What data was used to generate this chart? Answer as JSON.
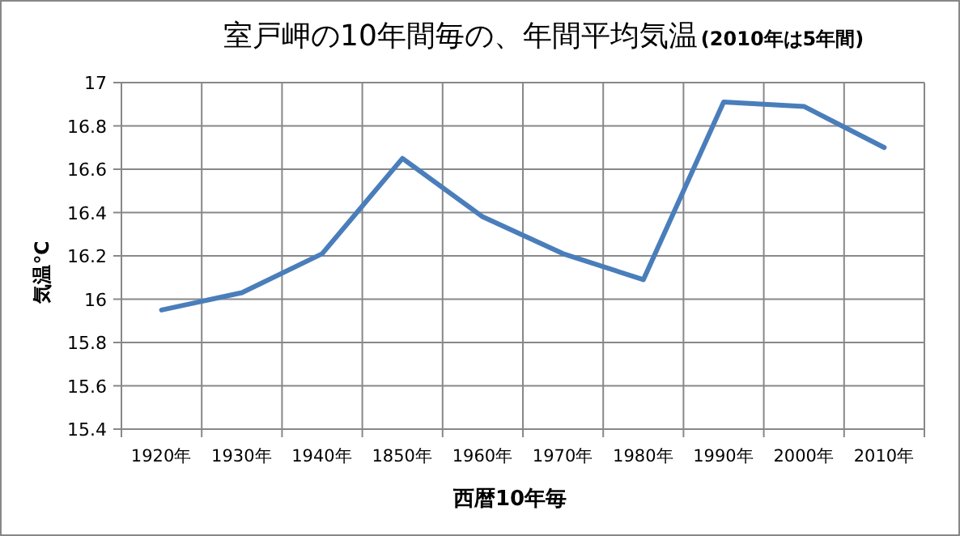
{
  "chart_data": {
    "type": "line",
    "title": "室戸岬の10年間毎の、年間平均気温",
    "subtitle": "(2010年は5年間)",
    "xlabel": "西暦10年毎",
    "ylabel": "気温℃",
    "categories": [
      "1920年",
      "1930年",
      "1940年",
      "1850年",
      "1960年",
      "1970年",
      "1980年",
      "1990年",
      "2000年",
      "2010年"
    ],
    "series": [
      {
        "color": "#4a7ebb",
        "values": [
          15.95,
          16.03,
          16.21,
          16.65,
          16.38,
          16.21,
          16.09,
          16.91,
          16.89,
          16.7
        ]
      }
    ],
    "ylim": [
      15.4,
      17
    ],
    "yticks": [
      15.4,
      15.6,
      15.8,
      16,
      16.2,
      16.4,
      16.6,
      16.8,
      17
    ],
    "grid": true,
    "marker": "none",
    "line_style": "solid"
  }
}
